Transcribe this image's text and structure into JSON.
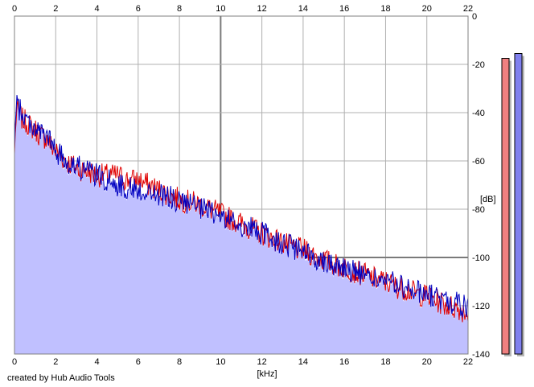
{
  "chart_data": {
    "type": "area",
    "x_unit_label": "[kHz]",
    "y_unit_label": "[dB]",
    "xlim": [
      0,
      22
    ],
    "ylim": [
      -140,
      0
    ],
    "x_ticks": [
      0,
      2,
      4,
      6,
      8,
      10,
      12,
      14,
      16,
      18,
      20,
      22
    ],
    "y_ticks": [
      0,
      -20,
      -40,
      -60,
      -80,
      -100,
      -120,
      -140
    ],
    "colors": {
      "fill": "#c0c0ff",
      "left": "#e00000",
      "right": "#0000c0",
      "grid": "#b0b0b0",
      "grid_major": "#7a7a7a",
      "meter_left": "#f08080",
      "meter_right": "#8080ee"
    },
    "series": [
      {
        "color": "#e00000",
        "x": [
          0,
          0.1,
          0.2,
          0.4,
          0.6,
          0.8,
          1.0,
          1.2,
          1.4,
          1.6,
          1.8,
          2.0,
          2.5,
          3.0,
          3.5,
          4.0,
          4.5,
          5.0,
          5.5,
          6.0,
          6.5,
          7.0,
          7.5,
          8.0,
          8.5,
          9.0,
          9.5,
          10.0,
          10.5,
          11.0,
          11.5,
          12.0,
          12.5,
          13.0,
          13.5,
          14.0,
          14.5,
          15.0,
          15.5,
          16.0,
          16.5,
          17.0,
          17.5,
          18.0,
          18.5,
          19.0,
          19.5,
          20.0,
          20.5,
          21.0,
          21.5,
          22.0
        ],
        "values": [
          -57,
          -38,
          -40,
          -43,
          -44,
          -46,
          -47,
          -49,
          -50,
          -51,
          -54,
          -56,
          -60,
          -63,
          -64,
          -66,
          -66,
          -66,
          -68,
          -68,
          -70,
          -72,
          -74,
          -76,
          -77,
          -78,
          -80,
          -82,
          -84,
          -86,
          -88,
          -90,
          -92,
          -94,
          -96,
          -97,
          -99,
          -101,
          -103,
          -104,
          -106,
          -107,
          -109,
          -110,
          -112,
          -113,
          -115,
          -116,
          -118,
          -120,
          -121,
          -123
        ]
      },
      {
        "color": "#0000c0",
        "x": [
          0,
          0.1,
          0.2,
          0.4,
          0.6,
          0.8,
          1.0,
          1.2,
          1.4,
          1.6,
          1.8,
          2.0,
          2.5,
          3.0,
          3.5,
          4.0,
          4.5,
          5.0,
          5.5,
          6.0,
          6.5,
          7.0,
          7.5,
          8.0,
          8.5,
          9.0,
          9.5,
          10.0,
          10.5,
          11.0,
          11.5,
          12.0,
          12.5,
          13.0,
          13.5,
          14.0,
          14.5,
          15.0,
          15.5,
          16.0,
          16.5,
          17.0,
          17.5,
          18.0,
          18.5,
          19.0,
          19.5,
          20.0,
          20.5,
          21.0,
          21.5,
          22.0
        ],
        "values": [
          -55,
          -36,
          -38,
          -41,
          -43,
          -45,
          -46,
          -48,
          -49,
          -50,
          -53,
          -56,
          -60,
          -62,
          -64,
          -66,
          -68,
          -70,
          -71,
          -72,
          -73,
          -74,
          -75,
          -77,
          -78,
          -80,
          -81,
          -83,
          -85,
          -87,
          -88,
          -90,
          -92,
          -94,
          -96,
          -98,
          -100,
          -101,
          -103,
          -104,
          -106,
          -107,
          -109,
          -110,
          -111,
          -113,
          -114,
          -115,
          -117,
          -118,
          -119,
          -121
        ]
      }
    ],
    "meters": [
      {
        "color": "#f08080",
        "value_db": -17.5
      },
      {
        "color": "#8080ee",
        "value_db": -15.5
      }
    ]
  },
  "footer": {
    "credit": "created by Hub Audio Tools"
  }
}
